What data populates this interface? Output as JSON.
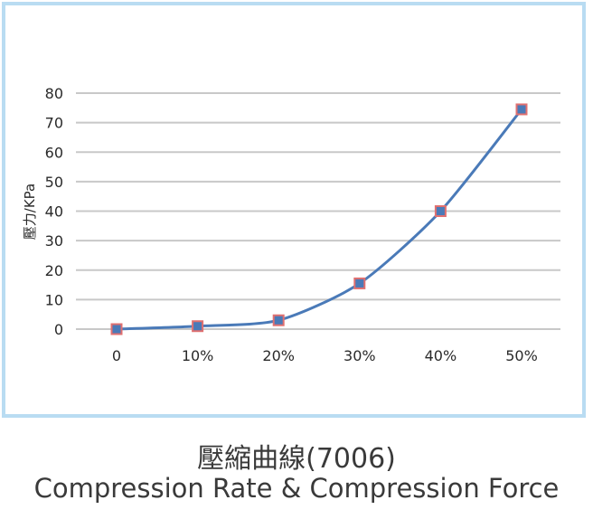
{
  "chart_data": {
    "type": "line",
    "categories": [
      "0",
      "10%",
      "20%",
      "30%",
      "40%",
      "50%"
    ],
    "series": [
      {
        "values": [
          0,
          1,
          3,
          15.5,
          40,
          74.5
        ]
      }
    ],
    "ylabel": "壓力/KPa",
    "xlabel": "",
    "ylim": [
      0,
      80
    ],
    "yticks": [
      0,
      10,
      20,
      30,
      40,
      50,
      60,
      70,
      80
    ],
    "grid": true,
    "colors": {
      "line": "#4a7ab8",
      "marker_fill": "#4a7ab8",
      "marker_edge": "#e07070",
      "grid": "#c8c8c8",
      "frame": "#b9dcf2"
    }
  },
  "caption": {
    "chinese": "壓縮曲線(7006)",
    "english": "Compression Rate & Compression Force"
  }
}
